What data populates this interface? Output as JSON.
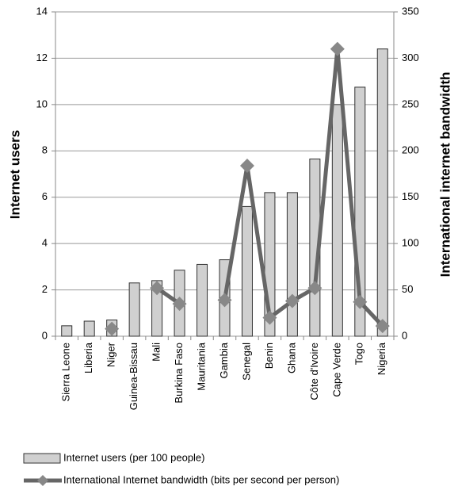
{
  "chart_data": {
    "type": "bar_line",
    "categories": [
      "Sierra Leone",
      "Liberia",
      "Niger",
      "Guinea-Bissau",
      "Mali",
      "Burkina Faso",
      "Mauritania",
      "Gambia",
      "Senegal",
      "Benin",
      "Ghana",
      "Côte d'Ivoire",
      "Cape Verde",
      "Togo",
      "Nigeria"
    ],
    "y_label": "Internet users",
    "y2_label": "International internet bandwidth",
    "ylim": [
      0,
      14
    ],
    "yticks": [
      0,
      2,
      4,
      6,
      8,
      10,
      12,
      14
    ],
    "y2lim": [
      0,
      350
    ],
    "y2ticks": [
      0,
      50,
      100,
      150,
      200,
      250,
      300,
      350
    ],
    "grid": true,
    "series": [
      {
        "name": "Internet users (per 100 people)",
        "type": "bar",
        "color": "#d0d0d0",
        "values": [
          0.45,
          0.65,
          0.7,
          2.3,
          2.4,
          2.85,
          3.1,
          3.3,
          5.6,
          6.2,
          6.2,
          7.65,
          10.0,
          10.75,
          12.4
        ]
      },
      {
        "name": "International Internet bandwidth (bits per second per person)",
        "type": "line",
        "axis": "y2",
        "color": "#666666",
        "values": [
          null,
          null,
          8,
          null,
          52,
          35,
          null,
          39,
          184,
          20,
          38,
          52,
          310,
          37,
          11
        ]
      }
    ]
  }
}
